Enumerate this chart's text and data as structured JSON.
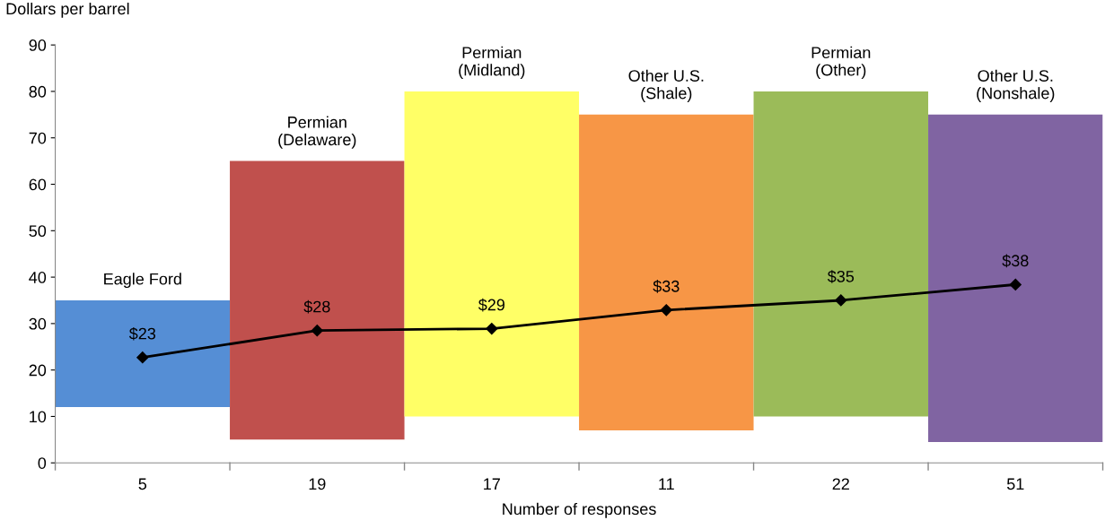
{
  "chart_data": {
    "type": "bar",
    "ylabel": "Dollars per barrel",
    "xlabel": "Number of responses",
    "categories": [
      "5",
      "19",
      "17",
      "11",
      "22",
      "51"
    ],
    "series": [
      {
        "colors": [
          "#558ed5",
          "#c0504d",
          "#ffff66",
          "#f79646",
          "#9bbb59",
          "#8064a2"
        ],
        "base": [
          12,
          5,
          10,
          7,
          10,
          4.5
        ],
        "values": [
          23,
          60,
          70,
          68,
          70,
          70.5
        ]
      },
      {
        "type": "line",
        "color": "#000000",
        "marker": "diamond",
        "values": [
          22.7,
          28.5,
          28.9,
          32.9,
          35.0,
          38.4
        ],
        "value_labels": [
          "$23",
          "$28",
          "$29",
          "$33",
          "$35",
          "$38"
        ]
      }
    ],
    "annotations": [
      {
        "text": "Eagle Ford",
        "x": "5",
        "y": 35
      },
      {
        "text": "Permian\n(Delaware)",
        "x": "19",
        "y": 65
      },
      {
        "text": "Permian\n(Midland)",
        "x": "17",
        "y": 80
      },
      {
        "text": "Other U.S.\n(Shale)",
        "x": "11",
        "y": 75
      },
      {
        "text": "Permian\n(Other)",
        "x": "22",
        "y": 80
      },
      {
        "text": "Other U.S.\n(Nonshale)",
        "x": "51",
        "y": 75
      }
    ],
    "ylim": [
      0,
      90
    ],
    "yticks": [
      0,
      10,
      20,
      30,
      40,
      50,
      60,
      70,
      80,
      90
    ],
    "grid": false
  }
}
